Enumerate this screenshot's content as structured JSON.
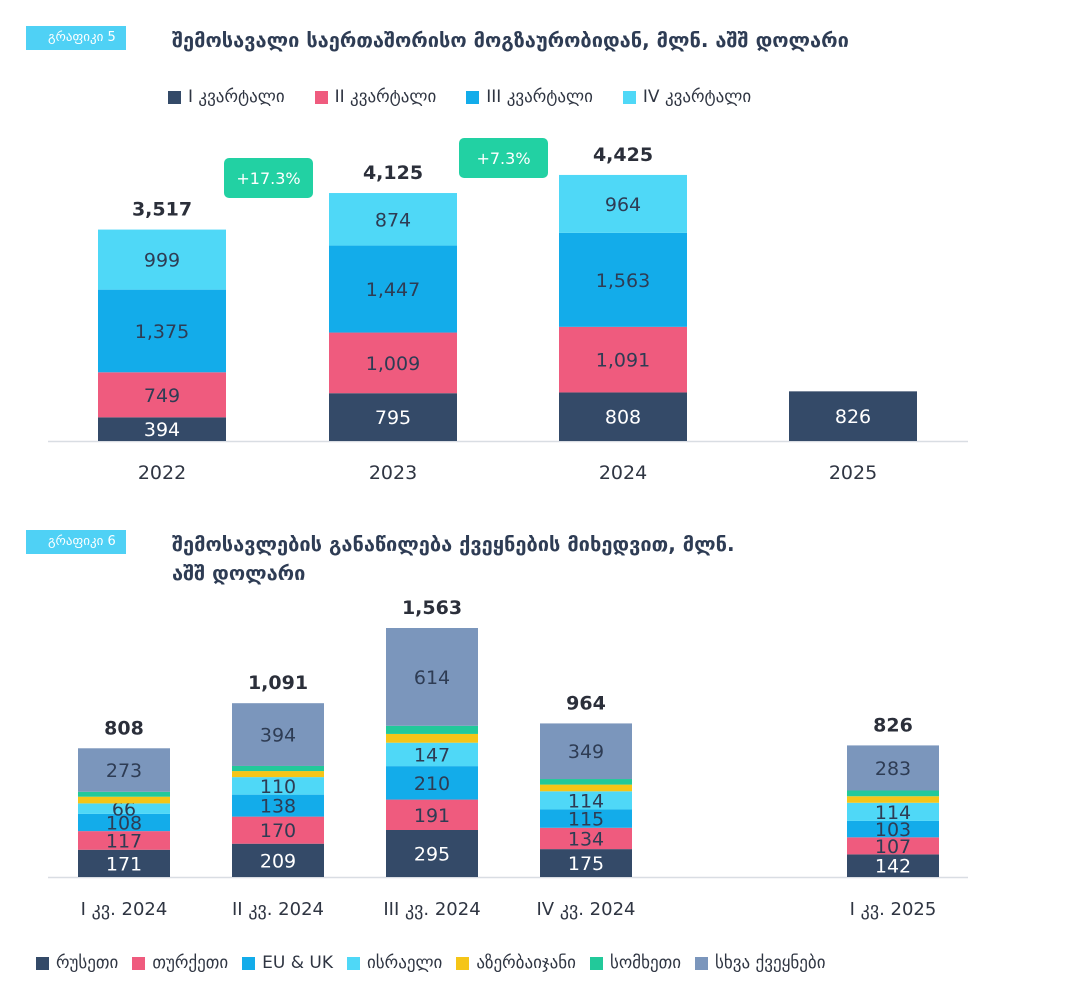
{
  "colors": {
    "q1": "#344a68",
    "q2": "#ef5b7e",
    "q3": "#13acea",
    "q4": "#4fd8f7",
    "russia": "#344a68",
    "turkey": "#ef5b7e",
    "eu_uk": "#13acea",
    "israel": "#4fd8f7",
    "azerbaijan": "#f5c518",
    "armenia": "#22c99a",
    "other": "#7b96bc",
    "growth_badge": "#22d1a3"
  },
  "chart1": {
    "tag": "გრაფიკი 5",
    "title": "შემოსავალი საერთაშორისო მოგზაურობიდან, მლნ. აშშ დოლარი",
    "legend": [
      "I კვარტალი",
      "II კვარტალი",
      "III კვარტალი",
      "IV კვარტალი"
    ]
  },
  "chart2": {
    "tag": "გრაფიკი 6",
    "title_line1": "შემოსავლების განაწილება ქვეყნების მიხედვით, მლნ.",
    "title_line2": "აშშ დოლარი",
    "legend": [
      "რუსეთი",
      "თურქეთი",
      "EU & UK",
      "ისრაელი",
      "აზერბაიჯანი",
      "სომხეთი",
      "სხვა ქვეყნები"
    ]
  },
  "chart_data": [
    {
      "type": "bar",
      "stacked": true,
      "title": "შემოსავალი საერთაშორისო მოგზაურობიდან, მლნ. აშშ დოლარი",
      "categories": [
        "2022",
        "2023",
        "2024",
        "2025"
      ],
      "series": [
        {
          "name": "I კვარტალი",
          "color_key": "q1",
          "values": [
            394,
            795,
            808,
            826
          ]
        },
        {
          "name": "II კვარტალი",
          "color_key": "q2",
          "values": [
            749,
            1009,
            1091,
            null
          ]
        },
        {
          "name": "III კვარტალი",
          "color_key": "q3",
          "values": [
            1375,
            1447,
            1563,
            null
          ]
        },
        {
          "name": "IV კვარტალი",
          "color_key": "q4",
          "values": [
            999,
            874,
            964,
            null
          ]
        }
      ],
      "totals": [
        "3,517",
        "4,125",
        "4,425",
        ""
      ],
      "growth_labels": [
        "+17.3%",
        "+7.3%"
      ],
      "value_max": 4425,
      "grid": false
    },
    {
      "type": "bar",
      "stacked": true,
      "title": "შემოსავლების განაწილება ქვეყნების მიხედვით, მლნ. აშშ დოლარი",
      "categories": [
        "I კვ. 2024",
        "II კვ. 2024",
        "III კვ. 2024",
        "IV კვ. 2024",
        "I კვ. 2025"
      ],
      "series": [
        {
          "name": "რუსეთი",
          "color_key": "russia",
          "values": [
            171,
            209,
            295,
            175,
            142
          ],
          "labels": [
            "171",
            "209",
            "295",
            "175",
            "142"
          ]
        },
        {
          "name": "თურქეთი",
          "color_key": "turkey",
          "values": [
            117,
            170,
            191,
            134,
            107
          ],
          "labels": [
            "117",
            "170",
            "191",
            "134",
            "107"
          ]
        },
        {
          "name": "EU & UK",
          "color_key": "eu_uk",
          "values": [
            108,
            138,
            210,
            115,
            103
          ],
          "labels": [
            "108",
            "138",
            "210",
            "115",
            "103"
          ]
        },
        {
          "name": "ისრაელი",
          "color_key": "israel",
          "values": [
            66,
            110,
            147,
            114,
            114
          ],
          "labels": [
            "66",
            "110",
            "147",
            "114",
            "114"
          ]
        },
        {
          "name": "აზერბაიჯანი",
          "color_key": "azerbaijan",
          "values": [
            42,
            38,
            55,
            42,
            41
          ]
        },
        {
          "name": "სომხეთი",
          "color_key": "armenia",
          "values": [
            31,
            32,
            51,
            35,
            36
          ]
        },
        {
          "name": "სხვა ქვეყნები",
          "color_key": "other",
          "values": [
            273,
            394,
            614,
            349,
            283
          ],
          "labels": [
            "273",
            "394",
            "614",
            "349",
            "283"
          ]
        }
      ],
      "totals": [
        "808",
        "1,091",
        "1,563",
        "964",
        "826"
      ],
      "value_max": 1563,
      "grid": false
    }
  ]
}
